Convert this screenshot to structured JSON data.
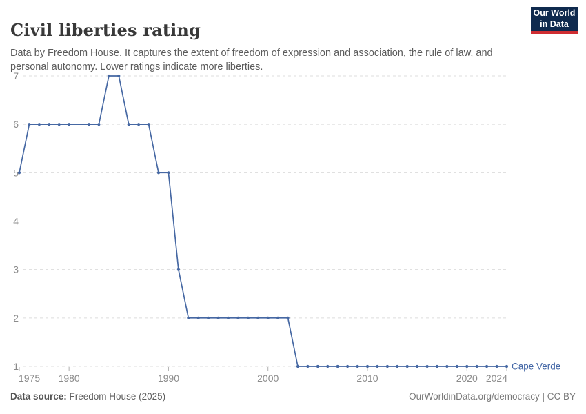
{
  "header": {
    "title": "Civil liberties rating",
    "subtitle": "Data by Freedom House. It captures the extent of freedom of expression and association, the rule of law, and personal autonomy. Lower ratings indicate more liberties.",
    "logo": {
      "line1": "Our World",
      "line2": "in Data"
    }
  },
  "footer": {
    "source_label": "Data source:",
    "source_value": " Freedom House (2025)",
    "attribution": "OurWorldinData.org/democracy | CC BY"
  },
  "colors": {
    "line": "#4668a3",
    "entity_label": "#4165a5",
    "grid": "#dcdcdc",
    "tick_label": "#8b8b8b",
    "tick_mark": "#b0b0b0",
    "logo_bg": "#0f2a4e",
    "logo_bar": "#cf2d32"
  },
  "chart_data": {
    "type": "line",
    "title": "Civil liberties rating",
    "xlabel": "",
    "ylabel": "",
    "xlim": [
      1975,
      2024
    ],
    "ylim": [
      1,
      7
    ],
    "x_ticks": [
      1975,
      1980,
      1990,
      2000,
      2010,
      2020,
      2024
    ],
    "y_ticks": [
      1,
      2,
      3,
      4,
      5,
      6,
      7
    ],
    "grid": "horizontal-dashed",
    "legend_position": "end-of-line",
    "series": [
      {
        "name": "Cape Verde",
        "color": "#4668a3",
        "points": [
          [
            1975,
            5
          ],
          [
            1976,
            6
          ],
          [
            1977,
            6
          ],
          [
            1978,
            6
          ],
          [
            1979,
            6
          ],
          [
            1980,
            6
          ],
          [
            1982,
            6
          ],
          [
            1983,
            6
          ],
          [
            1984,
            7
          ],
          [
            1985,
            7
          ],
          [
            1986,
            6
          ],
          [
            1987,
            6
          ],
          [
            1988,
            6
          ],
          [
            1989,
            5
          ],
          [
            1990,
            5
          ],
          [
            1991,
            3
          ],
          [
            1992,
            2
          ],
          [
            1993,
            2
          ],
          [
            1994,
            2
          ],
          [
            1995,
            2
          ],
          [
            1996,
            2
          ],
          [
            1997,
            2
          ],
          [
            1998,
            2
          ],
          [
            1999,
            2
          ],
          [
            2000,
            2
          ],
          [
            2001,
            2
          ],
          [
            2002,
            2
          ],
          [
            2003,
            1
          ],
          [
            2004,
            1
          ],
          [
            2005,
            1
          ],
          [
            2006,
            1
          ],
          [
            2007,
            1
          ],
          [
            2008,
            1
          ],
          [
            2009,
            1
          ],
          [
            2010,
            1
          ],
          [
            2011,
            1
          ],
          [
            2012,
            1
          ],
          [
            2013,
            1
          ],
          [
            2014,
            1
          ],
          [
            2015,
            1
          ],
          [
            2016,
            1
          ],
          [
            2017,
            1
          ],
          [
            2018,
            1
          ],
          [
            2019,
            1
          ],
          [
            2020,
            1
          ],
          [
            2021,
            1
          ],
          [
            2022,
            1
          ],
          [
            2023,
            1
          ],
          [
            2024,
            1
          ]
        ]
      }
    ]
  }
}
